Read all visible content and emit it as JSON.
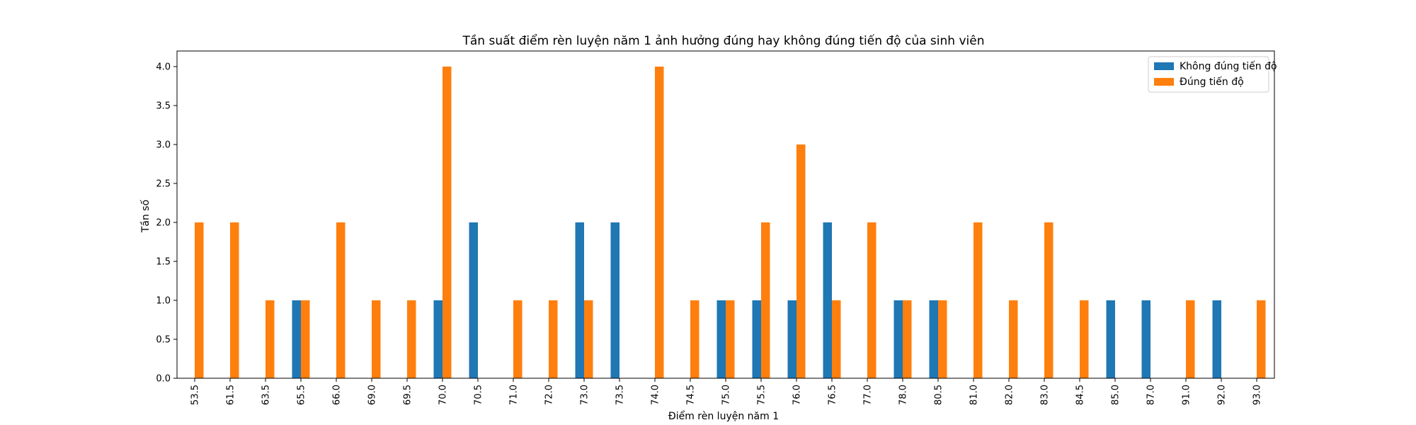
{
  "chart_data": {
    "type": "bar",
    "title": "Tần suất điểm rèn luyện năm 1 ảnh hưởng đúng hay không đúng tiến độ của sinh viên",
    "xlabel": "Điểm rèn luyện năm 1",
    "ylabel": "Tần số",
    "ylim": [
      0,
      4.2
    ],
    "yticks": [
      "0.0",
      "0.5",
      "1.0",
      "1.5",
      "2.0",
      "2.5",
      "3.0",
      "3.5",
      "4.0"
    ],
    "grid": false,
    "legend_position": "top-right",
    "categories": [
      "53.5",
      "61.5",
      "63.5",
      "65.5",
      "66.0",
      "69.0",
      "69.5",
      "70.0",
      "70.5",
      "71.0",
      "72.0",
      "73.0",
      "73.5",
      "74.0",
      "74.5",
      "75.0",
      "75.5",
      "76.0",
      "76.5",
      "77.0",
      "78.0",
      "80.5",
      "81.0",
      "82.0",
      "83.0",
      "84.5",
      "85.0",
      "87.0",
      "91.0",
      "92.0",
      "93.0"
    ],
    "series": [
      {
        "name": "Không đúng tiến độ",
        "color": "#1f77b4",
        "values": [
          0,
          0,
          0,
          1,
          0,
          0,
          0,
          1,
          2,
          0,
          0,
          2,
          2,
          0,
          0,
          1,
          1,
          1,
          2,
          0,
          1,
          1,
          0,
          0,
          0,
          0,
          1,
          1,
          0,
          1,
          0
        ]
      },
      {
        "name": "Đúng tiến độ",
        "color": "#ff7f0e",
        "values": [
          2,
          2,
          1,
          1,
          2,
          1,
          1,
          4,
          0,
          1,
          1,
          1,
          0,
          4,
          1,
          1,
          2,
          3,
          1,
          2,
          1,
          1,
          2,
          1,
          2,
          1,
          0,
          0,
          1,
          0,
          1
        ]
      }
    ]
  }
}
